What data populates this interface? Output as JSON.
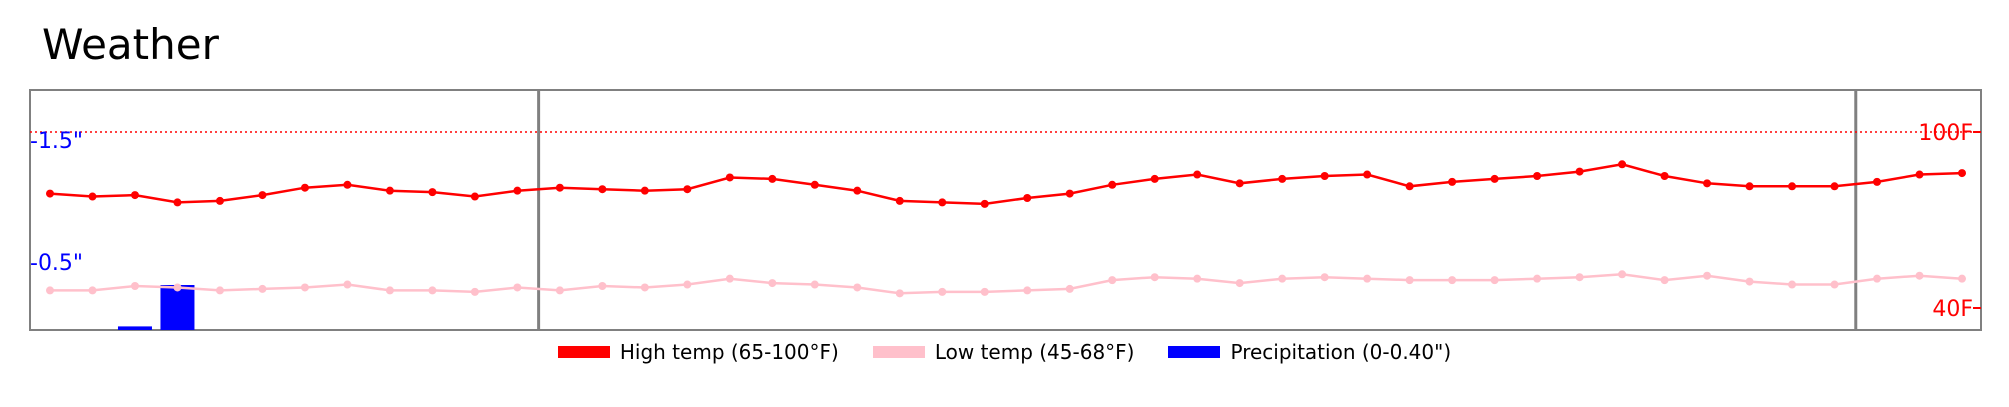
{
  "title": "Weather",
  "chart_data": {
    "type": "line",
    "x_count": 46,
    "series": [
      {
        "name": "High temp (65-100°F)",
        "color": "#ff0000",
        "unit": "F",
        "values": [
          79,
          78,
          78.5,
          76,
          76.5,
          78.5,
          81,
          82,
          80,
          79.5,
          78,
          80,
          81,
          80.5,
          80,
          80.5,
          84.5,
          84,
          82,
          80,
          76.5,
          76,
          75.5,
          77.5,
          79,
          82,
          84,
          85.5,
          82.5,
          84,
          85,
          85.5,
          81.5,
          83,
          84,
          85,
          86.5,
          89,
          85,
          82.5,
          81.5,
          81.5,
          81.5,
          83,
          85.5,
          86
        ]
      },
      {
        "name": "Low temp (45-68°F)",
        "color": "#ffc0cb",
        "unit": "F",
        "values": [
          46,
          46,
          47.5,
          47,
          46,
          46.5,
          47,
          48,
          46,
          46,
          45.5,
          47,
          46,
          47.5,
          47,
          48,
          50,
          48.5,
          48,
          47,
          45,
          45.5,
          45.5,
          46,
          46.5,
          49.5,
          50.5,
          50,
          48.5,
          50,
          50.5,
          50,
          49.5,
          49.5,
          49.5,
          50,
          50.5,
          51.5,
          49.5,
          51,
          49,
          48,
          48,
          50,
          51,
          50
        ]
      },
      {
        "name": "Precipitation (0-0.40\")",
        "color": "#0000ff",
        "type": "bar",
        "unit": "in",
        "values": [
          0,
          0,
          0.02,
          0.25,
          0,
          0,
          0,
          0,
          0,
          0,
          0,
          0,
          0,
          0,
          0,
          0,
          0,
          0,
          0,
          0,
          0,
          0,
          0,
          0,
          0,
          0,
          0,
          0,
          0,
          0,
          0,
          0,
          0,
          0,
          0,
          0,
          0,
          0,
          0,
          0,
          0,
          0,
          0,
          0,
          0,
          0
        ]
      }
    ],
    "temp_axis": {
      "range": [
        40,
        100
      ],
      "tick_labels": [
        "40F",
        "100F"
      ],
      "reference_line": 100
    },
    "precip_axis": {
      "tick_labels": [
        "-1.5\"",
        "-0.5\""
      ]
    },
    "vertical_markers": [
      12,
      43
    ],
    "legend_position": "bottom-center",
    "grid": false
  },
  "legend": [
    {
      "label": "High temp (65-100°F)",
      "color": "#ff0000"
    },
    {
      "label": "Low temp (45-68°F)",
      "color": "#ffc0cb"
    },
    {
      "label": "Precipitation (0-0.40\")",
      "color": "#0000ff"
    }
  ]
}
